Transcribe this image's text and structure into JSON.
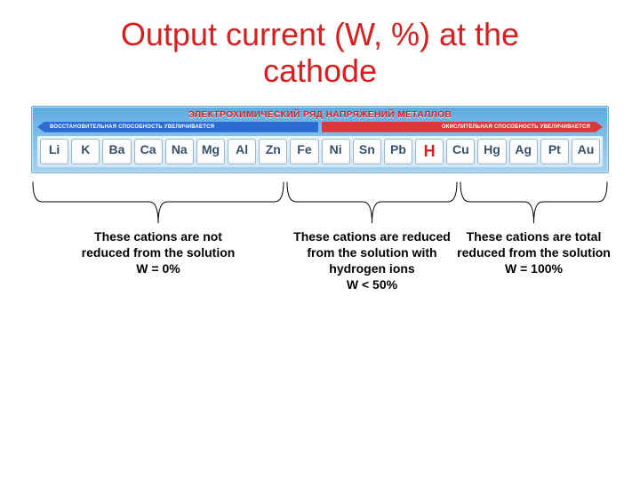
{
  "title": {
    "line1": "Output current (W, %) at the",
    "line2": "cathode",
    "color": "#d81e1e",
    "fontsize": 36
  },
  "chart": {
    "header": "ЭЛЕКТРОХИМИЧЕСКИЙ РЯД НАПРЯЖЕНИЙ МЕТАЛЛОВ",
    "left_arrow_text": "ВОССТАНОВИТЕЛЬНАЯ СПОСОБНОСТЬ УВЕЛИЧИВАЕТСЯ",
    "right_arrow_text": "ОКИСЛИТЕЛЬНАЯ СПОСОБНОСТЬ УВЕЛИЧИВАЕТСЯ",
    "left_arrow_color": "#2b6bd4",
    "right_arrow_color": "#d83a3a",
    "background_gradient": [
      "#5aa9e0",
      "#a5d2ee"
    ],
    "elements": [
      "Li",
      "K",
      "Ba",
      "Ca",
      "Na",
      "Mg",
      "Al",
      "Zn",
      "Fe",
      "Ni",
      "Sn",
      "Pb",
      "H",
      "Cu",
      "Hg",
      "Ag",
      "Pt",
      "Au"
    ],
    "hydrogen_index": 12,
    "element_color": "#36506b",
    "hydrogen_color": "#d81e1e"
  },
  "groups": [
    {
      "range_pct": [
        0,
        44
      ],
      "caption": "These cations are not reduced from the solution\nW = 0%"
    },
    {
      "range_pct": [
        44,
        74
      ],
      "caption": "These cations are reduced from the solution with hydrogen ions\nW < 50%"
    },
    {
      "range_pct": [
        74,
        100
      ],
      "caption": "These cations are total reduced from the solution\nW = 100%"
    }
  ],
  "caption_style": {
    "color": "#000000",
    "fontsize": 14,
    "fontweight": "bold"
  },
  "brace_line_color": "#000000",
  "brace_line_width": 1
}
